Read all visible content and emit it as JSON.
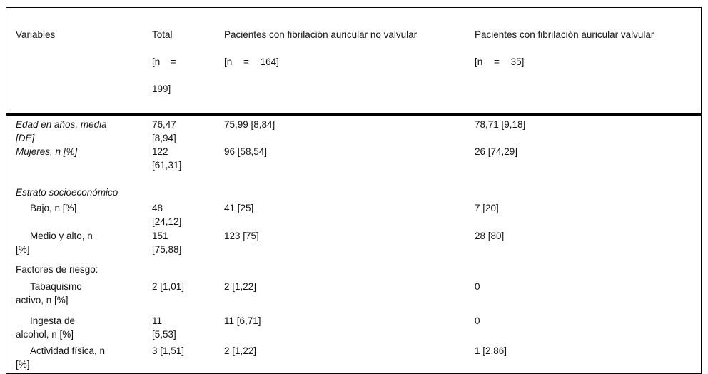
{
  "colors": {
    "background": "#ffffff",
    "border": "#000000",
    "text": "#141414"
  },
  "table": {
    "headers": {
      "variables": "Variables",
      "total": {
        "line1": "Total",
        "line2": "[n =",
        "line3": "199]"
      },
      "no_valvular": {
        "line1": "Pacientes con fibrilación auricular no valvular",
        "line2": "[n = 164]"
      },
      "valvular": {
        "line1": "Pacientes con fibrilación auricular valvular",
        "line2": "[n = 35]"
      }
    },
    "rows": [
      {
        "variable": "Edad en años, media\n[DE]",
        "total": "76,47\n[8,94]",
        "no_valvular": "75,99 [8,84]",
        "valvular": "78,71 [9,18]"
      },
      {
        "variable": "Mujeres, n [%]",
        "total": "122\n[61,31]",
        "no_valvular": "96 [58,54]",
        "valvular": "26 [74,29]"
      },
      {
        "variable": "Estrato socioeconómico",
        "total": "",
        "no_valvular": "",
        "valvular": ""
      },
      {
        "variable": "Bajo, n [%]",
        "total": "48\n[24,12]",
        "no_valvular": "41 [25]",
        "valvular": "7 [20]"
      },
      {
        "variable": "Medio y alto, n\n[%]",
        "total": "151\n[75,88]",
        "no_valvular": "123 [75]",
        "valvular": "28 [80]"
      },
      {
        "variable": "Factores de riesgo:",
        "total": "",
        "no_valvular": "",
        "valvular": ""
      },
      {
        "variable": "Tabaquismo\nactivo, n [%]",
        "total": "2 [1,01]",
        "no_valvular": "2 [1,22]",
        "valvular": "0"
      },
      {
        "variable": "Ingesta de\nalcohol, n [%]",
        "total": "11\n[5,53]",
        "no_valvular": "11 [6,71]",
        "valvular": "0"
      },
      {
        "variable": "Actividad física, n\n[%]",
        "total": "3 [1,51]",
        "no_valvular": "2 [1,22]",
        "valvular": "1 [2,86]"
      }
    ]
  }
}
